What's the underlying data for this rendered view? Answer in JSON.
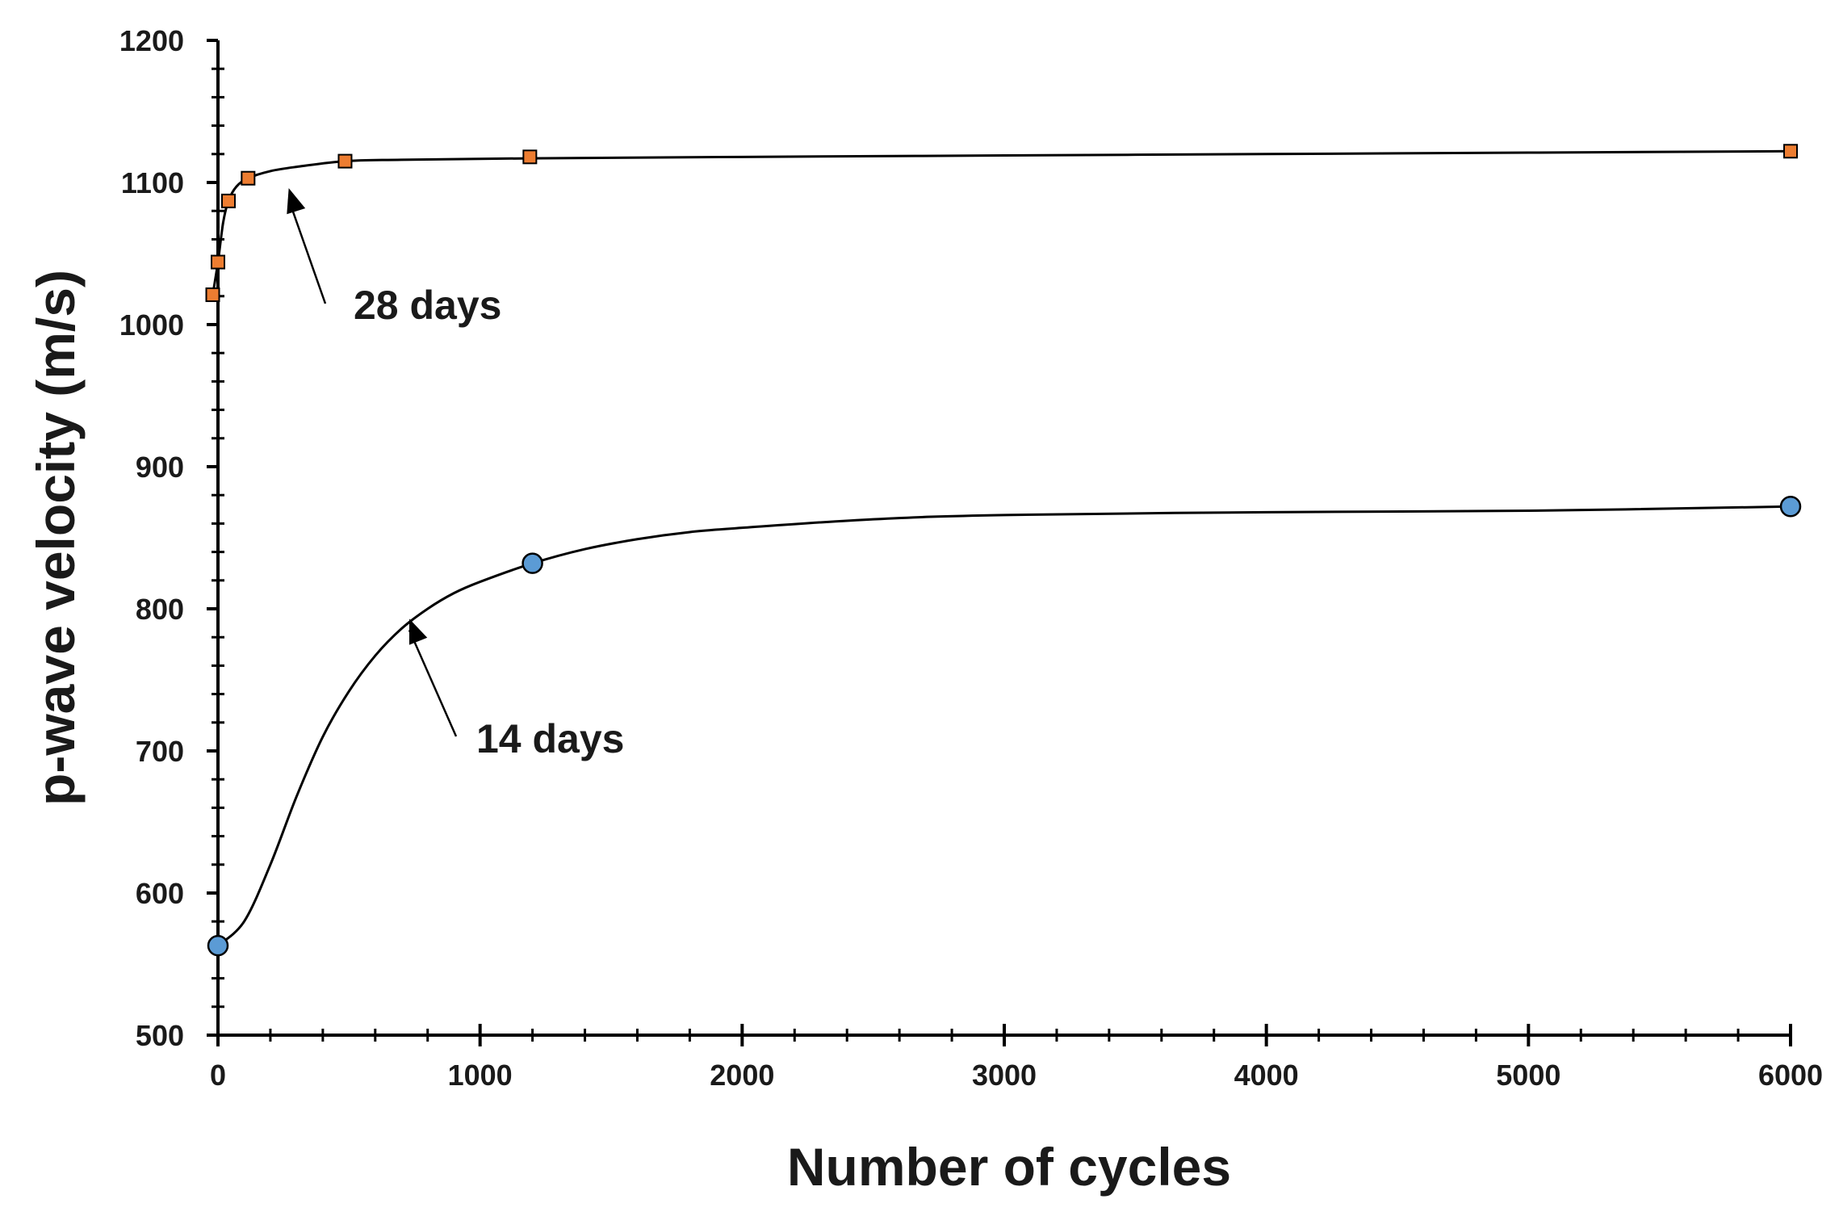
{
  "chart_data": {
    "type": "scatter",
    "title": "",
    "xlabel": "Number of cycles",
    "ylabel": "p-wave velocity (m/s)",
    "xlim": [
      0,
      6000
    ],
    "ylim": [
      500,
      1200
    ],
    "xticks": [
      0,
      1000,
      2000,
      3000,
      4000,
      5000,
      6000
    ],
    "yticks": [
      500,
      600,
      700,
      800,
      900,
      1000,
      1100,
      1200
    ],
    "xtick_labels": [
      "0",
      "1000",
      "2000",
      "3000",
      "4000",
      "5000",
      "6000"
    ],
    "ytick_labels": [
      "500",
      "600",
      "700",
      "800",
      "900",
      "1000",
      "1100",
      "1200"
    ],
    "grid": false,
    "series": [
      {
        "name": "28 days",
        "marker": "square",
        "color": "#ED7D31",
        "x": [
          -20,
          0,
          40,
          115,
          485,
          1190,
          6000
        ],
        "y": [
          1021,
          1044,
          1087,
          1103,
          1115,
          1118,
          1122
        ],
        "curve_x": [
          -20,
          0,
          20,
          40,
          70,
          115,
          200,
          300,
          485,
          700,
          1190,
          2000,
          3000,
          4000,
          5000,
          6000
        ],
        "curve_y": [
          1021,
          1044,
          1072,
          1087,
          1097,
          1103,
          1108,
          1111,
          1115,
          1116,
          1117,
          1118,
          1119,
          1120,
          1121,
          1122
        ]
      },
      {
        "name": "14 days",
        "marker": "circle",
        "color": "#5B9BD5",
        "x": [
          0,
          1200,
          6000
        ],
        "y": [
          563,
          832,
          872
        ],
        "curve_x": [
          0,
          100,
          200,
          300,
          400,
          500,
          600,
          700,
          800,
          900,
          1000,
          1200,
          1400,
          1600,
          1800,
          2000,
          2500,
          3000,
          4000,
          5000,
          6000
        ],
        "curve_y": [
          563,
          580,
          620,
          668,
          710,
          742,
          767,
          786,
          800,
          811,
          819,
          832,
          842,
          849,
          854,
          857,
          863,
          866,
          868,
          869,
          872
        ]
      }
    ],
    "annotations": [
      {
        "text": "28 days",
        "points_to_series": "28 days",
        "points_to": [
          270,
          1096
        ]
      },
      {
        "text": "14 days",
        "points_to_series": "14 days",
        "points_to": [
          730,
          793
        ]
      }
    ]
  }
}
